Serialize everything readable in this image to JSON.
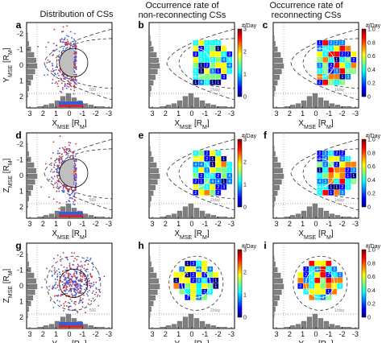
{
  "titles": {
    "a": "Distribution of CSs",
    "b_line1": "Occurrence rate of",
    "b_line2": "non-reconnecting CSs",
    "c_line1": "Occurrence rate of",
    "c_line2": "reconnecting CSs"
  },
  "panel_letters": [
    "a",
    "b",
    "c",
    "d",
    "e",
    "f",
    "g",
    "h",
    "i"
  ],
  "axes": {
    "xticks": [
      "3",
      "2",
      "1",
      "0",
      "-1",
      "-2",
      "-3"
    ],
    "yticks_xy": [
      "-2",
      "-1",
      "0",
      "1",
      "2"
    ],
    "yticks_z": [
      "-2",
      "-1",
      "0",
      "1",
      "2"
    ],
    "row1_xlabel": {
      "main": "X",
      "sub": "MSE",
      "unit": " [R",
      "unitsub": "M",
      "end": "]"
    },
    "row2_xlabel": {
      "main": "X",
      "sub": "MSE",
      "unit": " [R",
      "unitsub": "M",
      "end": "]"
    },
    "row3_xlabel": {
      "main": "Y",
      "sub": "MSE",
      "unit": " [R",
      "unitsub": "M",
      "end": "]"
    },
    "row1_ylabel": {
      "main": "Y",
      "sub": "MSE",
      "unit": " [R",
      "unitsub": "M",
      "end": "]"
    },
    "row2_ylabel": {
      "main": "Z",
      "sub": "MSE",
      "unit": " [R",
      "unitsub": "M",
      "end": "]"
    },
    "row3_ylabel": {
      "main": "Z",
      "sub": "MSE",
      "unit": " [R",
      "unitsub": "M",
      "end": "]"
    }
  },
  "colorbars": {
    "unit": "#/Day",
    "nonrec_ticks": [
      "3",
      "2",
      "1",
      "0"
    ],
    "rec_ticks": [
      "1.0",
      "0.8",
      "0.6",
      "0.4",
      "0.2",
      "0"
    ],
    "colors": [
      "#00007f",
      "#0000ff",
      "#007fff",
      "#00ffff",
      "#7fff7f",
      "#ffff00",
      "#ff7f00",
      "#ff0000",
      "#7f0000"
    ]
  },
  "histogram_labels": {
    "count": "500",
    "nonrec_rate": "2/day",
    "rec_rate": "1/day"
  },
  "chart_data": [
    {
      "panel": "a",
      "type": "scatter",
      "title": "Distribution of CSs",
      "xlabel": "X_MSE [R_M]",
      "ylabel": "Y_MSE [R_M]",
      "xlim": [
        3,
        -3
      ],
      "ylim": [
        -2.7,
        2.7
      ]
    },
    {
      "panel": "b",
      "type": "heatmap",
      "title": "Occurrence rate of non-reconnecting CSs",
      "colorbar_range": [
        0,
        3
      ],
      "colorbar_label": "#/Day"
    },
    {
      "panel": "c",
      "type": "heatmap",
      "title": "Occurrence rate of reconnecting CSs",
      "colorbar_range": [
        0,
        1.0
      ],
      "colorbar_label": "#/Day"
    },
    {
      "panel": "d",
      "type": "scatter",
      "xlabel": "X_MSE [R_M]",
      "ylabel": "Z_MSE [R_M]"
    },
    {
      "panel": "e",
      "type": "heatmap",
      "colorbar_range": [
        0,
        3
      ]
    },
    {
      "panel": "f",
      "type": "heatmap",
      "colorbar_range": [
        0,
        1.0
      ]
    },
    {
      "panel": "g",
      "type": "scatter",
      "xlabel": "Y_MSE [R_M]",
      "ylabel": "Z_MSE [R_M]"
    },
    {
      "panel": "h",
      "type": "heatmap",
      "colorbar_range": [
        0,
        3
      ]
    },
    {
      "panel": "i",
      "type": "heatmap",
      "colorbar_range": [
        0,
        1.0
      ]
    }
  ]
}
